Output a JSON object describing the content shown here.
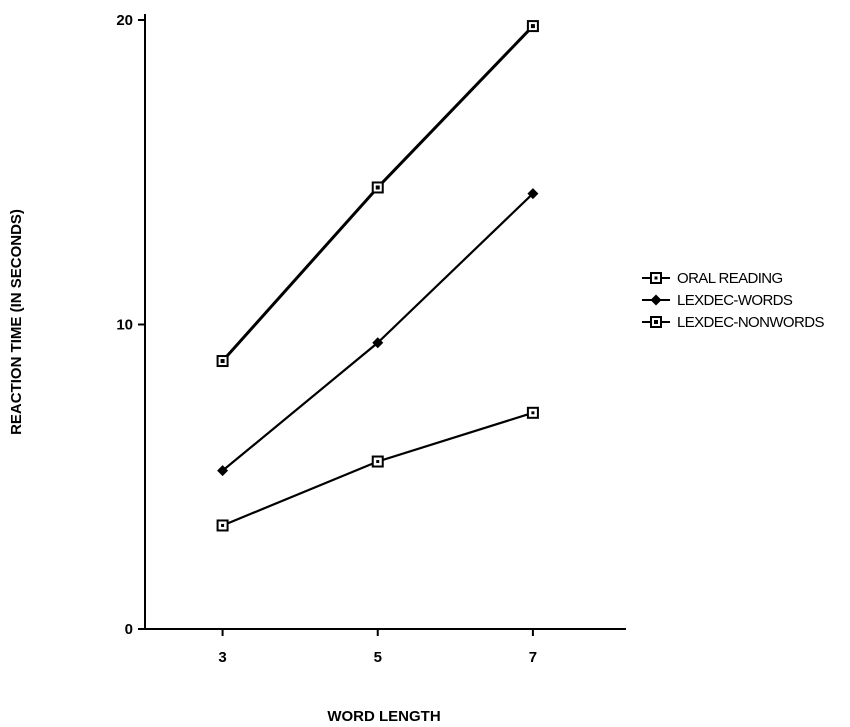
{
  "chart_data": {
    "type": "line",
    "xlabel": "WORD LENGTH",
    "ylabel": "REACTION TIME (IN SECONDS)",
    "x": [
      3,
      5,
      7
    ],
    "xticks": [
      "3",
      "5",
      "7"
    ],
    "xlim": [
      2,
      8.2
    ],
    "yticks": [
      "0",
      "10",
      "20"
    ],
    "ylim": [
      0,
      20
    ],
    "grid": false,
    "legend_position": "right",
    "series": [
      {
        "name": "ORAL READING",
        "values": [
          3.4,
          5.5,
          7.1
        ],
        "marker": "open-square"
      },
      {
        "name": "LEXDEC-WORDS",
        "values": [
          5.2,
          9.4,
          14.3
        ],
        "marker": "filled-diamond"
      },
      {
        "name": "LEXDEC-NONWORDS",
        "values": [
          8.8,
          14.5,
          19.8
        ],
        "marker": "crossed-square"
      }
    ]
  }
}
